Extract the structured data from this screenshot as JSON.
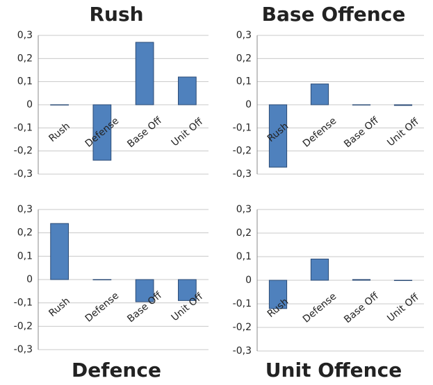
{
  "chart_data": [
    {
      "type": "bar",
      "title": "Rush",
      "categories": [
        "Rush",
        "Defense",
        "Base Off",
        "Unit Off"
      ],
      "values": [
        0,
        -0.24,
        0.27,
        0.12
      ],
      "color": "#4f81bd",
      "ylim": [
        -0.3,
        0.3
      ],
      "yticks": [
        {
          "value": 0.3,
          "label": "0,3"
        },
        {
          "value": 0.2,
          "label": "0,2"
        },
        {
          "value": 0.1,
          "label": "0,1"
        },
        0,
        {
          "value": -0.1,
          "label": "-0,1"
        },
        {
          "value": -0.2,
          "label": "-0,2"
        },
        {
          "value": -0.3,
          "label": "-0,3"
        }
      ],
      "grid": true
    },
    {
      "type": "bar",
      "title": "Base Offence",
      "categories": [
        "Rush",
        "Defense",
        "Base Off",
        "Unit Off"
      ],
      "values": [
        -0.27,
        0.09,
        0,
        -0.003
      ],
      "color": "#4f81bd",
      "ylim": [
        -0.3,
        0.3
      ],
      "yticks": [
        {
          "value": 0.3,
          "label": "0,3"
        },
        {
          "value": 0.2,
          "label": "0,2"
        },
        {
          "value": 0.1,
          "label": "0,1"
        },
        0,
        {
          "value": -0.1,
          "label": "-0,1"
        },
        {
          "value": -0.2,
          "label": "-0,2"
        },
        {
          "value": -0.3,
          "label": "-0,3"
        }
      ],
      "grid": true
    },
    {
      "type": "bar",
      "title": "Defence",
      "categories": [
        "Rush",
        "Defense",
        "Base Off",
        "Unit Off"
      ],
      "values": [
        0.24,
        0,
        -0.095,
        -0.09
      ],
      "color": "#4f81bd",
      "ylim": [
        -0.3,
        0.3
      ],
      "yticks": [
        {
          "value": 0.3,
          "label": "0,3"
        },
        {
          "value": 0.2,
          "label": "0,2"
        },
        {
          "value": 0.1,
          "label": "0,1"
        },
        0,
        {
          "value": -0.1,
          "label": "-0,1"
        },
        {
          "value": -0.2,
          "label": "-0,2"
        },
        {
          "value": -0.3,
          "label": "-0,3"
        }
      ],
      "grid": true
    },
    {
      "type": "bar",
      "title": "Unit Offence",
      "categories": [
        "Rush",
        "Defense",
        "Base Off",
        "Unit Off"
      ],
      "values": [
        -0.12,
        0.09,
        0.003,
        0
      ],
      "color": "#4f81bd",
      "ylim": [
        -0.3,
        0.3
      ],
      "yticks": [
        {
          "value": 0.3,
          "label": "0,3"
        },
        {
          "value": 0.2,
          "label": "0,2"
        },
        {
          "value": 0.1,
          "label": "0,1"
        },
        0,
        {
          "value": -0.1,
          "label": "-0,1"
        },
        {
          "value": -0.2,
          "label": "-0,2"
        },
        {
          "value": -0.3,
          "label": "-0,3"
        }
      ],
      "grid": true
    }
  ]
}
